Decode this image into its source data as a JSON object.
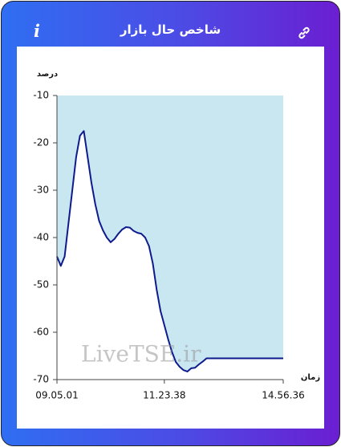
{
  "header": {
    "title": "شاخص حال بازار",
    "info_icon": "i"
  },
  "chart_data": {
    "type": "area",
    "y_label": "درصد",
    "x_label": "زمان",
    "watermark": "LiveTSE.ir",
    "categories": [
      "09.05.01",
      null,
      null,
      null,
      null,
      null,
      null,
      null,
      null,
      null,
      null,
      null,
      null,
      null,
      null,
      null,
      null,
      null,
      null,
      null,
      null,
      null,
      null,
      null,
      null,
      null,
      null,
      null,
      "11.23.38",
      null,
      null,
      null,
      null,
      null,
      null,
      null,
      null,
      null,
      null,
      null,
      null,
      null,
      null,
      null,
      null,
      null,
      null,
      null,
      null,
      null,
      null,
      null,
      null,
      null,
      null,
      null,
      null,
      null,
      null,
      "14.56.36"
    ],
    "values": [
      -44,
      -46,
      -44,
      -37,
      -30,
      -23,
      -18.5,
      -17.5,
      -23,
      -28.5,
      -33,
      -36.5,
      -38.5,
      -40,
      -41,
      -40.3,
      -39.2,
      -38.3,
      -37.8,
      -37.9,
      -38.6,
      -39,
      -39.2,
      -40,
      -41.8,
      -45.5,
      -51,
      -55.5,
      -58.5,
      -61.5,
      -64.2,
      -66.3,
      -67.3,
      -68,
      -68.3,
      -67.6,
      -67.5,
      -66.8,
      -66.2,
      -65.5,
      -65.5,
      -65.5,
      -65.5,
      -65.5,
      -65.5,
      -65.5,
      -65.5,
      -65.5,
      -65.5,
      -65.5,
      -65.5,
      -65.5,
      -65.5,
      -65.5,
      -65.5,
      -65.5,
      -65.5,
      -65.5,
      -65.5,
      -65.5
    ],
    "color": "#0d1b8c",
    "fill_color": "#c9e7f1",
    "ylim": [
      -70,
      -10
    ],
    "yticks": [
      -70,
      -60,
      -50,
      -40,
      -30,
      -20,
      -10
    ]
  }
}
